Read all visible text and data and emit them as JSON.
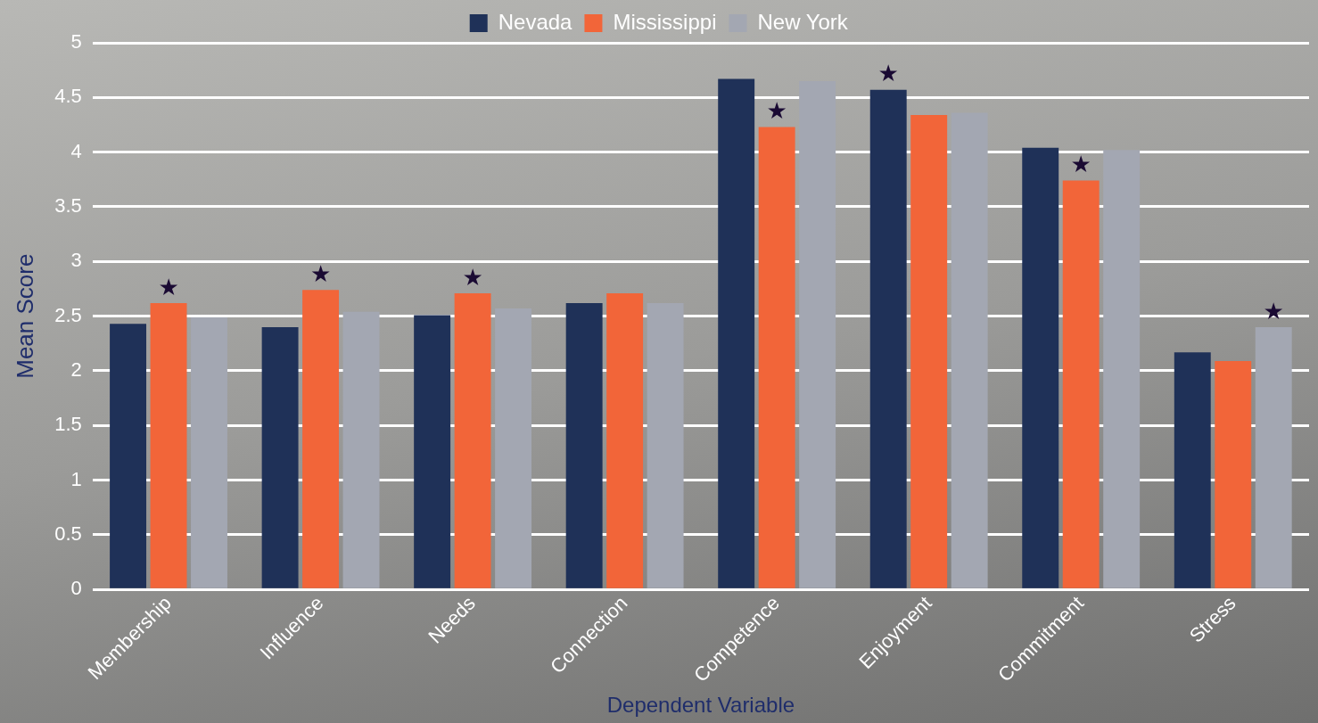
{
  "chart_data": {
    "type": "bar",
    "xlabel": "Dependent Variable",
    "ylabel": "Mean Score",
    "categories": [
      "Membership",
      "Influence",
      "Needs",
      "Connection",
      "Competence",
      "Enjoyment",
      "Commitment",
      "Stress"
    ],
    "series": [
      {
        "name": "Nevada",
        "color": "#1f3158",
        "values": [
          2.43,
          2.4,
          2.51,
          2.62,
          4.67,
          4.57,
          4.04,
          2.17
        ],
        "value_labels": [
          null,
          null,
          null,
          null,
          null,
          "★",
          null,
          null
        ]
      },
      {
        "name": "Mississippi",
        "color": "#f26539",
        "values": [
          2.62,
          2.74,
          2.71,
          2.71,
          4.23,
          4.34,
          3.74,
          2.09
        ],
        "value_labels": [
          "★",
          "★",
          "★",
          null,
          "★",
          null,
          "★",
          null
        ]
      },
      {
        "name": "New York",
        "color": "#a3a7b2",
        "values": [
          2.49,
          2.54,
          2.57,
          2.62,
          4.65,
          4.36,
          4.02,
          2.4
        ],
        "value_labels": [
          null,
          null,
          null,
          null,
          null,
          null,
          null,
          "★"
        ]
      }
    ],
    "ylim": [
      0,
      5
    ],
    "yticks": [
      0,
      0.5,
      1,
      1.5,
      2,
      2.5,
      3,
      3.5,
      4,
      4.5,
      5
    ],
    "grid": "y",
    "legend": "top"
  }
}
